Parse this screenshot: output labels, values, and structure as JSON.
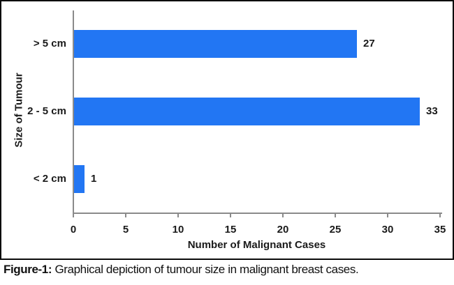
{
  "figure": {
    "caption_label": "Figure-1:",
    "caption_text": " Graphical depiction of tumour size in malignant breast cases."
  },
  "chart_data": {
    "type": "bar",
    "orientation": "horizontal",
    "title": "",
    "categories": [
      "> 5 cm",
      "2 - 5 cm",
      "< 2 cm"
    ],
    "values": [
      27,
      33,
      1
    ],
    "data_labels": [
      "27",
      "33",
      "1"
    ],
    "xlabel": "Number of Malignant Cases",
    "ylabel": "Size of Tumour",
    "xlim": [
      0,
      35
    ],
    "xticks": [
      "0",
      "5",
      "10",
      "15",
      "20",
      "25",
      "30",
      "35"
    ],
    "grid": false,
    "legend": false,
    "bar_color": "#2276F3",
    "axis_color": "#8a8a8a",
    "text_color": "#1a1a1a"
  }
}
